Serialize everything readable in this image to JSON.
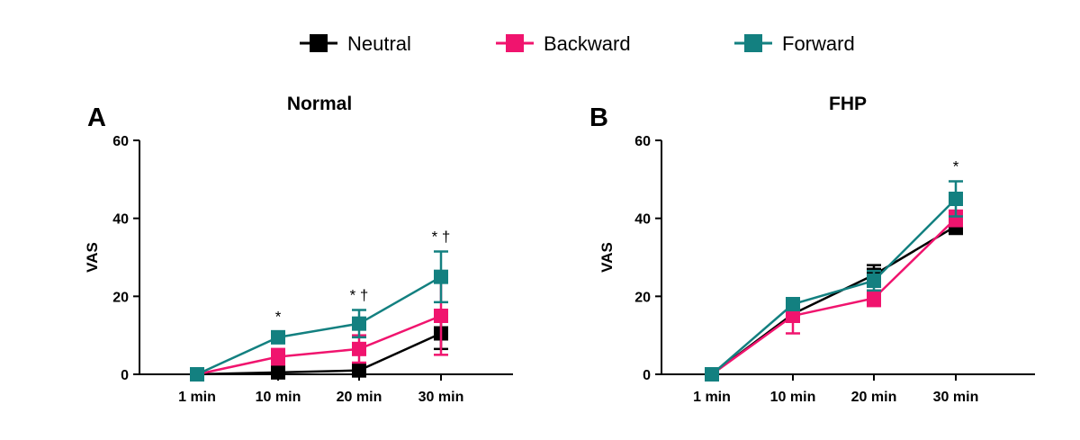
{
  "legend": [
    {
      "name": "Neutral",
      "color": "#000000"
    },
    {
      "name": "Backward",
      "color": "#f0146e"
    },
    {
      "name": "Forward",
      "color": "#138080"
    }
  ],
  "chart_data": [
    {
      "type": "line",
      "panel_label": "A",
      "title": "Normal",
      "xlabel": "",
      "ylabel": "VAS",
      "ylim": [
        0,
        60
      ],
      "yticks": [
        0,
        20,
        40,
        60
      ],
      "categories": [
        "1 min",
        "10 min",
        "20 min",
        "30 min"
      ],
      "series": [
        {
          "name": "Neutral",
          "color": "#000000",
          "values": [
            0,
            0.5,
            1,
            10.5
          ],
          "error": [
            0,
            1,
            1,
            4
          ]
        },
        {
          "name": "Backward",
          "color": "#f0146e",
          "values": [
            0,
            4.5,
            6.5,
            15
          ],
          "error": [
            0,
            2,
            3.5,
            10
          ]
        },
        {
          "name": "Forward",
          "color": "#138080",
          "values": [
            0,
            9.5,
            13,
            25
          ],
          "error": [
            0,
            1.5,
            3.5,
            6.5
          ]
        }
      ],
      "annotations": [
        "",
        "*",
        "* †",
        "* †"
      ],
      "legend_position": "top-center"
    },
    {
      "type": "line",
      "panel_label": "B",
      "title": "FHP",
      "xlabel": "",
      "ylabel": "VAS",
      "ylim": [
        0,
        60
      ],
      "yticks": [
        0,
        20,
        40,
        60
      ],
      "categories": [
        "1 min",
        "10 min",
        "20 min",
        "30 min"
      ],
      "series": [
        {
          "name": "Neutral",
          "color": "#000000",
          "values": [
            0,
            15.5,
            25.5,
            38
          ],
          "error": [
            0,
            1.5,
            2.5,
            2
          ]
        },
        {
          "name": "Backward",
          "color": "#f0146e",
          "values": [
            0,
            15,
            19.5,
            40
          ],
          "error": [
            0,
            4.5,
            2,
            2
          ]
        },
        {
          "name": "Forward",
          "color": "#138080",
          "values": [
            0,
            18,
            24,
            45
          ],
          "error": [
            0,
            1,
            2.5,
            4.5
          ]
        }
      ],
      "annotations": [
        "",
        "",
        "",
        "*"
      ],
      "legend_position": "top-center"
    }
  ]
}
